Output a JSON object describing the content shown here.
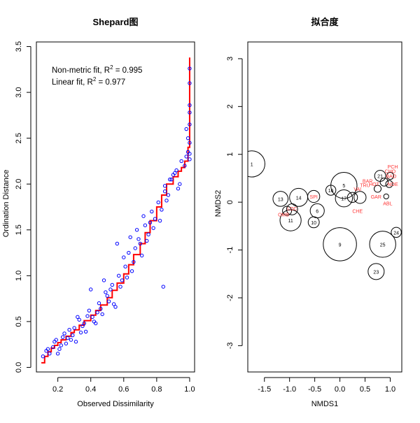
{
  "chart_data": [
    {
      "type": "scatter",
      "title": "Shepard图",
      "xlabel": "Observed Dissimilarity",
      "ylabel": "Ordination Distance",
      "xlim": [
        0.07,
        1.03
      ],
      "ylim": [
        -0.05,
        3.55
      ],
      "xticks": [
        "0.2",
        "0.4",
        "0.6",
        "0.8",
        "1.0"
      ],
      "xtick_values": [
        0.2,
        0.4,
        0.6,
        0.8,
        1.0
      ],
      "yticks": [
        "0.0",
        "0.5",
        "1.0",
        "1.5",
        "2.0",
        "2.5",
        "3.0",
        "3.5"
      ],
      "ytick_values": [
        0,
        0.5,
        1.0,
        1.5,
        2.0,
        2.5,
        3.0,
        3.5
      ],
      "annotations": [
        {
          "parts": [
            "Non-metric fit, R",
            "2",
            " = 0.995"
          ]
        },
        {
          "parts": [
            "Linear fit, R",
            "2",
            " = 0.977"
          ]
        }
      ],
      "colors": {
        "points": "#0000ff",
        "fit_line": "#ff0000"
      },
      "series": [
        {
          "kind": "step-line",
          "x": [
            0.1,
            0.12,
            0.14,
            0.16,
            0.18,
            0.2,
            0.22,
            0.25,
            0.28,
            0.3,
            0.33,
            0.36,
            0.4,
            0.43,
            0.46,
            0.5,
            0.53,
            0.56,
            0.6,
            0.63,
            0.66,
            0.7,
            0.73,
            0.76,
            0.8,
            0.83,
            0.86,
            0.9,
            0.93,
            0.95,
            0.97,
            0.99,
            1.0
          ],
          "y": [
            0.05,
            0.12,
            0.17,
            0.21,
            0.24,
            0.27,
            0.3,
            0.34,
            0.38,
            0.41,
            0.46,
            0.51,
            0.57,
            0.62,
            0.68,
            0.76,
            0.84,
            0.92,
            1.02,
            1.12,
            1.23,
            1.35,
            1.47,
            1.6,
            1.75,
            1.88,
            2.0,
            2.08,
            2.14,
            2.18,
            2.25,
            2.4,
            3.38
          ]
        },
        {
          "kind": "points",
          "x": [
            0.11,
            0.13,
            0.15,
            0.17,
            0.19,
            0.21,
            0.23,
            0.25,
            0.27,
            0.29,
            0.31,
            0.33,
            0.35,
            0.37,
            0.39,
            0.41,
            0.43,
            0.45,
            0.47,
            0.49,
            0.51,
            0.53,
            0.55,
            0.57,
            0.59,
            0.61,
            0.63,
            0.65,
            0.67,
            0.69,
            0.71,
            0.73,
            0.75,
            0.77,
            0.79,
            0.81,
            0.83,
            0.85,
            0.87,
            0.89,
            0.91,
            0.93,
            0.95,
            0.97,
            0.99,
            0.14,
            0.18,
            0.22,
            0.26,
            0.3,
            0.34,
            0.38,
            0.42,
            0.46,
            0.5,
            0.54,
            0.58,
            0.62,
            0.66,
            0.7,
            0.74,
            0.78,
            0.82,
            0.86,
            0.9,
            0.94,
            0.98,
            0.2,
            0.28,
            0.36,
            0.44,
            0.52,
            0.6,
            0.68,
            0.76,
            0.84,
            0.92,
            0.85,
            0.88,
            1.0,
            1.0,
            1.0,
            1.0,
            1.0,
            1.0,
            1.0,
            1.0,
            0.98,
            0.99,
            0.64,
            0.72,
            0.56,
            0.48,
            0.4,
            0.32,
            0.24
          ],
          "y": [
            0.12,
            0.18,
            0.15,
            0.22,
            0.3,
            0.2,
            0.33,
            0.26,
            0.41,
            0.35,
            0.28,
            0.52,
            0.45,
            0.39,
            0.62,
            0.55,
            0.48,
            0.7,
            0.58,
            0.82,
            0.72,
            0.9,
            0.66,
            1.0,
            0.95,
            1.1,
            1.25,
            1.05,
            1.3,
            1.4,
            1.22,
            1.55,
            1.45,
            1.7,
            1.62,
            1.8,
            1.72,
            1.98,
            1.88,
            2.05,
            2.12,
            1.95,
            2.25,
            2.2,
            2.35,
            0.2,
            0.28,
            0.24,
            0.32,
            0.43,
            0.38,
            0.56,
            0.5,
            0.64,
            0.78,
            0.69,
            0.88,
            0.98,
            1.15,
            1.35,
            1.38,
            1.52,
            1.6,
            1.82,
            2.1,
            2.0,
            2.3,
            0.15,
            0.3,
            0.48,
            0.6,
            0.85,
            1.2,
            1.5,
            1.58,
            0.88,
            2.15,
            1.92,
            2.05,
            3.26,
            3.1,
            2.86,
            2.78,
            2.65,
            2.45,
            2.33,
            2.27,
            2.6,
            2.5,
            1.42,
            1.65,
            1.35,
            0.95,
            0.85,
            0.55,
            0.37
          ]
        }
      ]
    },
    {
      "type": "scatter",
      "title": "拟合度",
      "xlabel": "NMDS1",
      "ylabel": "NMDS2",
      "xlim": [
        -1.83,
        1.23
      ],
      "ylim": [
        -3.55,
        3.35
      ],
      "xticks": [
        "-1.5",
        "-1.0",
        "-0.5",
        "0.0",
        "0.5",
        "1.0"
      ],
      "xtick_values": [
        -1.5,
        -1.0,
        -0.5,
        0.0,
        0.5,
        1.0
      ],
      "yticks": [
        "-3",
        "-2",
        "-1",
        "0",
        "1",
        "2",
        "3"
      ],
      "ytick_values": [
        -3,
        -2,
        -1,
        0,
        1,
        2,
        3
      ],
      "colors": {
        "circles": "#000000",
        "species_labels": "#ff3333"
      },
      "sites": [
        {
          "label": "1",
          "x": -1.75,
          "y": 0.8,
          "size": 0.26
        },
        {
          "label": "5",
          "x": 0.08,
          "y": 0.35,
          "size": 0.26
        },
        {
          "label": "9",
          "x": 0.0,
          "y": -0.88,
          "size": 0.33
        },
        {
          "label": "13",
          "x": -1.18,
          "y": 0.07,
          "size": 0.15
        },
        {
          "label": "14",
          "x": -0.82,
          "y": 0.1,
          "size": 0.18
        },
        {
          "label": "16",
          "x": -0.18,
          "y": 0.25,
          "size": 0.1
        },
        {
          "label": "17",
          "x": 0.08,
          "y": 0.08,
          "size": 0.17
        },
        {
          "label": "11",
          "x": -0.98,
          "y": -0.38,
          "size": 0.21
        },
        {
          "label": "10",
          "x": -0.52,
          "y": -0.42,
          "size": 0.11
        },
        {
          "label": "6",
          "x": -0.45,
          "y": -0.18,
          "size": 0.14
        },
        {
          "label": "25",
          "x": 0.85,
          "y": -0.88,
          "size": 0.26
        },
        {
          "label": "23",
          "x": 0.72,
          "y": -1.45,
          "size": 0.16
        },
        {
          "label": "24",
          "x": 1.12,
          "y": -0.63,
          "size": 0.1
        },
        {
          "label": "21",
          "x": 0.8,
          "y": 0.55,
          "size": 0.11
        },
        {
          "label": "",
          "x": -0.52,
          "y": 0.12,
          "size": 0.12
        },
        {
          "label": "",
          "x": -0.95,
          "y": -0.15,
          "size": 0.11
        },
        {
          "label": "",
          "x": -1.05,
          "y": -0.18,
          "size": 0.09
        },
        {
          "label": "",
          "x": 0.4,
          "y": 0.1,
          "size": 0.12
        },
        {
          "label": "",
          "x": 0.25,
          "y": 0.1,
          "size": 0.1
        },
        {
          "label": "",
          "x": 0.98,
          "y": 0.38,
          "size": 0.07
        },
        {
          "label": "",
          "x": 0.88,
          "y": 0.42,
          "size": 0.08
        },
        {
          "label": "",
          "x": 0.75,
          "y": 0.28,
          "size": 0.07
        },
        {
          "label": "",
          "x": 0.92,
          "y": 0.12,
          "size": 0.05
        },
        {
          "label": "",
          "x": 1.0,
          "y": 0.55,
          "size": 0.07
        }
      ],
      "species": [
        {
          "label": "PCH",
          "x": 1.05,
          "y": 0.75
        },
        {
          "label": "CHO",
          "x": 1.0,
          "y": 0.65
        },
        {
          "label": "BAO",
          "x": 1.02,
          "y": 0.55
        },
        {
          "label": "NOE",
          "x": 1.05,
          "y": 0.38
        },
        {
          "label": "GAR",
          "x": 0.72,
          "y": 0.12
        },
        {
          "label": "ABL",
          "x": 0.95,
          "y": -0.02
        },
        {
          "label": "CHE",
          "x": 0.35,
          "y": -0.18
        },
        {
          "label": "BAR",
          "x": 0.55,
          "y": 0.45
        },
        {
          "label": "TRU",
          "x": 0.5,
          "y": 0.36
        },
        {
          "label": "HOT",
          "x": 0.68,
          "y": 0.38
        },
        {
          "label": "SPI",
          "x": -0.52,
          "y": 0.12
        },
        {
          "label": "LOC",
          "x": -0.95,
          "y": -0.13
        },
        {
          "label": "OMB",
          "x": -1.12,
          "y": -0.25
        },
        {
          "label": "VAI",
          "x": 0.35,
          "y": 0.28
        }
      ]
    }
  ]
}
